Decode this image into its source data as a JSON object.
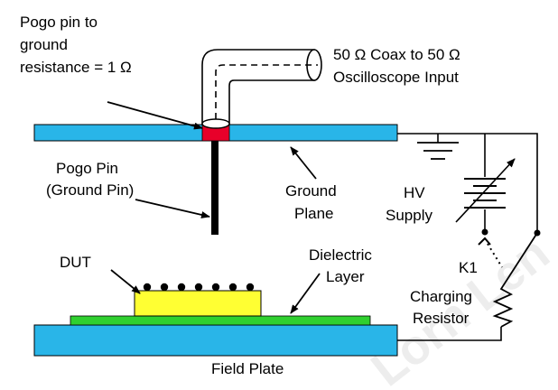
{
  "labels": {
    "pogo_resistance": [
      "Pogo pin to",
      "ground",
      "resistance = 1 Ω"
    ],
    "coax": [
      "50 Ω Coax to 50 Ω",
      "Oscilloscope Input"
    ],
    "pogo_pin": [
      "Pogo Pin",
      "(Ground Pin)"
    ],
    "ground_plane": [
      "Ground",
      "Plane"
    ],
    "hv_supply": [
      "HV",
      "Supply"
    ],
    "dut": "DUT",
    "dielectric": [
      "Dielectric",
      "Layer"
    ],
    "k1": "K1",
    "charging_resistor": [
      "Charging",
      "Resistor"
    ],
    "field_plate": "Field Plate",
    "watermark": "Lorn Len"
  },
  "colors": {
    "plate": "#29b5e8",
    "dielectric": "#2fd02f",
    "dut": "#ffff33",
    "contact": "#e8002a",
    "line": "#000000"
  }
}
